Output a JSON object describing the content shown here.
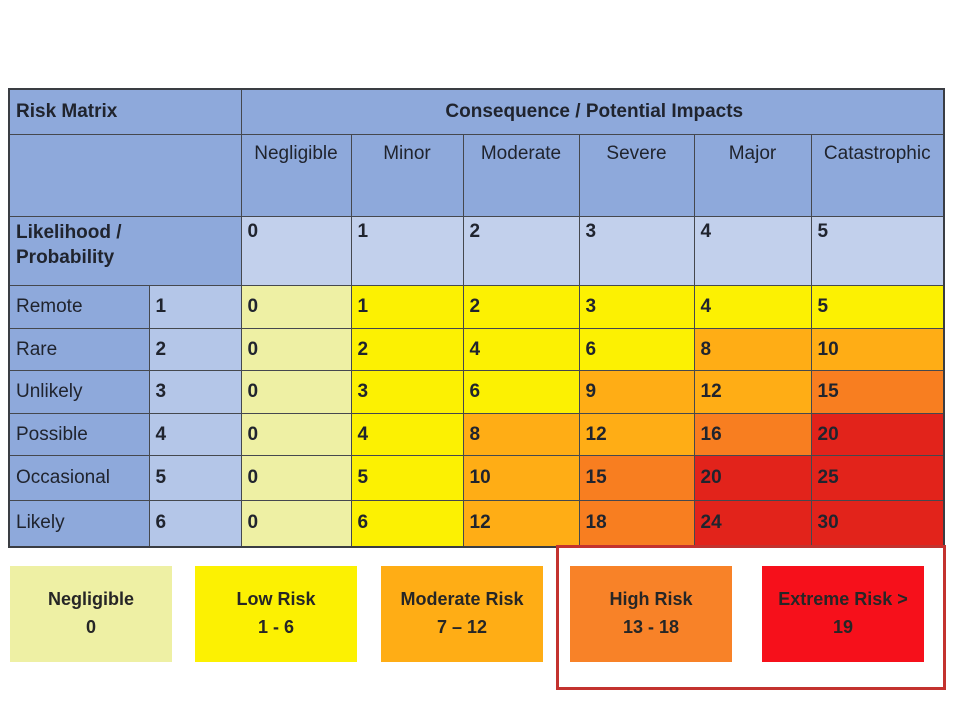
{
  "table": {
    "corner_title": "Risk Matrix",
    "consequence_title": "Consequence / Potential Impacts",
    "likelihood_title_line1": "Likelihood /",
    "likelihood_title_line2": "Probability",
    "columns": [
      "Negligible",
      "Minor",
      "Moderate",
      "Severe",
      "Major",
      "Catastrophic"
    ],
    "column_scores": [
      "0",
      "1",
      "2",
      "3",
      "4",
      "5"
    ],
    "rows": [
      {
        "label": "Remote",
        "score": "1",
        "values": [
          0,
          1,
          2,
          3,
          4,
          5
        ]
      },
      {
        "label": "Rare",
        "score": "2",
        "values": [
          0,
          2,
          4,
          6,
          8,
          10
        ]
      },
      {
        "label": "Unlikely",
        "score": "3",
        "values": [
          0,
          3,
          6,
          9,
          12,
          15
        ]
      },
      {
        "label": "Possible",
        "score": "4",
        "values": [
          0,
          4,
          8,
          12,
          16,
          20
        ]
      },
      {
        "label": "Occasional",
        "score": "5",
        "values": [
          0,
          5,
          10,
          15,
          20,
          25
        ]
      },
      {
        "label": "Likely",
        "score": "6",
        "values": [
          0,
          6,
          12,
          18,
          24,
          30
        ]
      }
    ]
  },
  "risk_bands": [
    {
      "max": 0,
      "color": "#EEF0A4"
    },
    {
      "max": 6,
      "color": "#FCF102"
    },
    {
      "max": 12,
      "color": "#FFAD15"
    },
    {
      "max": 18,
      "color": "#F87E20"
    },
    {
      "max": 999,
      "color": "#E2231B"
    }
  ],
  "legend": {
    "items": [
      {
        "label": "Negligible",
        "range": "0",
        "color": "#EEF0A4"
      },
      {
        "label": "Low Risk",
        "range": "1 - 6",
        "color": "#FCF102"
      },
      {
        "label": "Moderate Risk",
        "range": "7 – 12",
        "color": "#FFAD15"
      },
      {
        "label": "High Risk",
        "range": "13 - 18",
        "color": "#F88228"
      },
      {
        "label": "Extreme Risk >",
        "range": "19",
        "color": "#F6101B"
      }
    ],
    "highlight_outline_color": "#C3322E"
  },
  "colors": {
    "header_blue": "#8EA9DB",
    "likelihood_score_blue": "#B4C6E8",
    "consequence_score_blue": "#C2D0EC",
    "grid_line": "#45484e",
    "highlight_outline": "#C3322E"
  },
  "chart_data": {
    "type": "heatmap",
    "title": "Risk Matrix",
    "xlabel": "Consequence / Potential Impacts",
    "ylabel": "Likelihood / Probability",
    "columns": [
      "Negligible",
      "Minor",
      "Moderate",
      "Severe",
      "Major",
      "Catastrophic"
    ],
    "column_scores": [
      0,
      1,
      2,
      3,
      4,
      5
    ],
    "rows": [
      "Remote",
      "Rare",
      "Unlikely",
      "Possible",
      "Occasional",
      "Likely"
    ],
    "row_scores": [
      1,
      2,
      3,
      4,
      5,
      6
    ],
    "values": [
      [
        0,
        1,
        2,
        3,
        4,
        5
      ],
      [
        0,
        2,
        4,
        6,
        8,
        10
      ],
      [
        0,
        3,
        6,
        9,
        12,
        15
      ],
      [
        0,
        4,
        8,
        12,
        16,
        20
      ],
      [
        0,
        5,
        10,
        15,
        20,
        25
      ],
      [
        0,
        6,
        12,
        18,
        24,
        30
      ]
    ],
    "legend": [
      {
        "label": "Negligible",
        "range": "0",
        "color": "#EEF0A4"
      },
      {
        "label": "Low Risk",
        "range": "1 - 6",
        "color": "#FCF102"
      },
      {
        "label": "Moderate Risk",
        "range": "7 – 12",
        "color": "#FFAD15"
      },
      {
        "label": "High Risk",
        "range": "13 - 18",
        "color": "#F88228"
      },
      {
        "label": "Extreme Risk >",
        "range": "19",
        "color": "#F6101B"
      }
    ],
    "legend_position": "bottom",
    "annotations": [
      "High Risk and Extreme Risk legend boxes are outlined with a red rectangle"
    ]
  }
}
